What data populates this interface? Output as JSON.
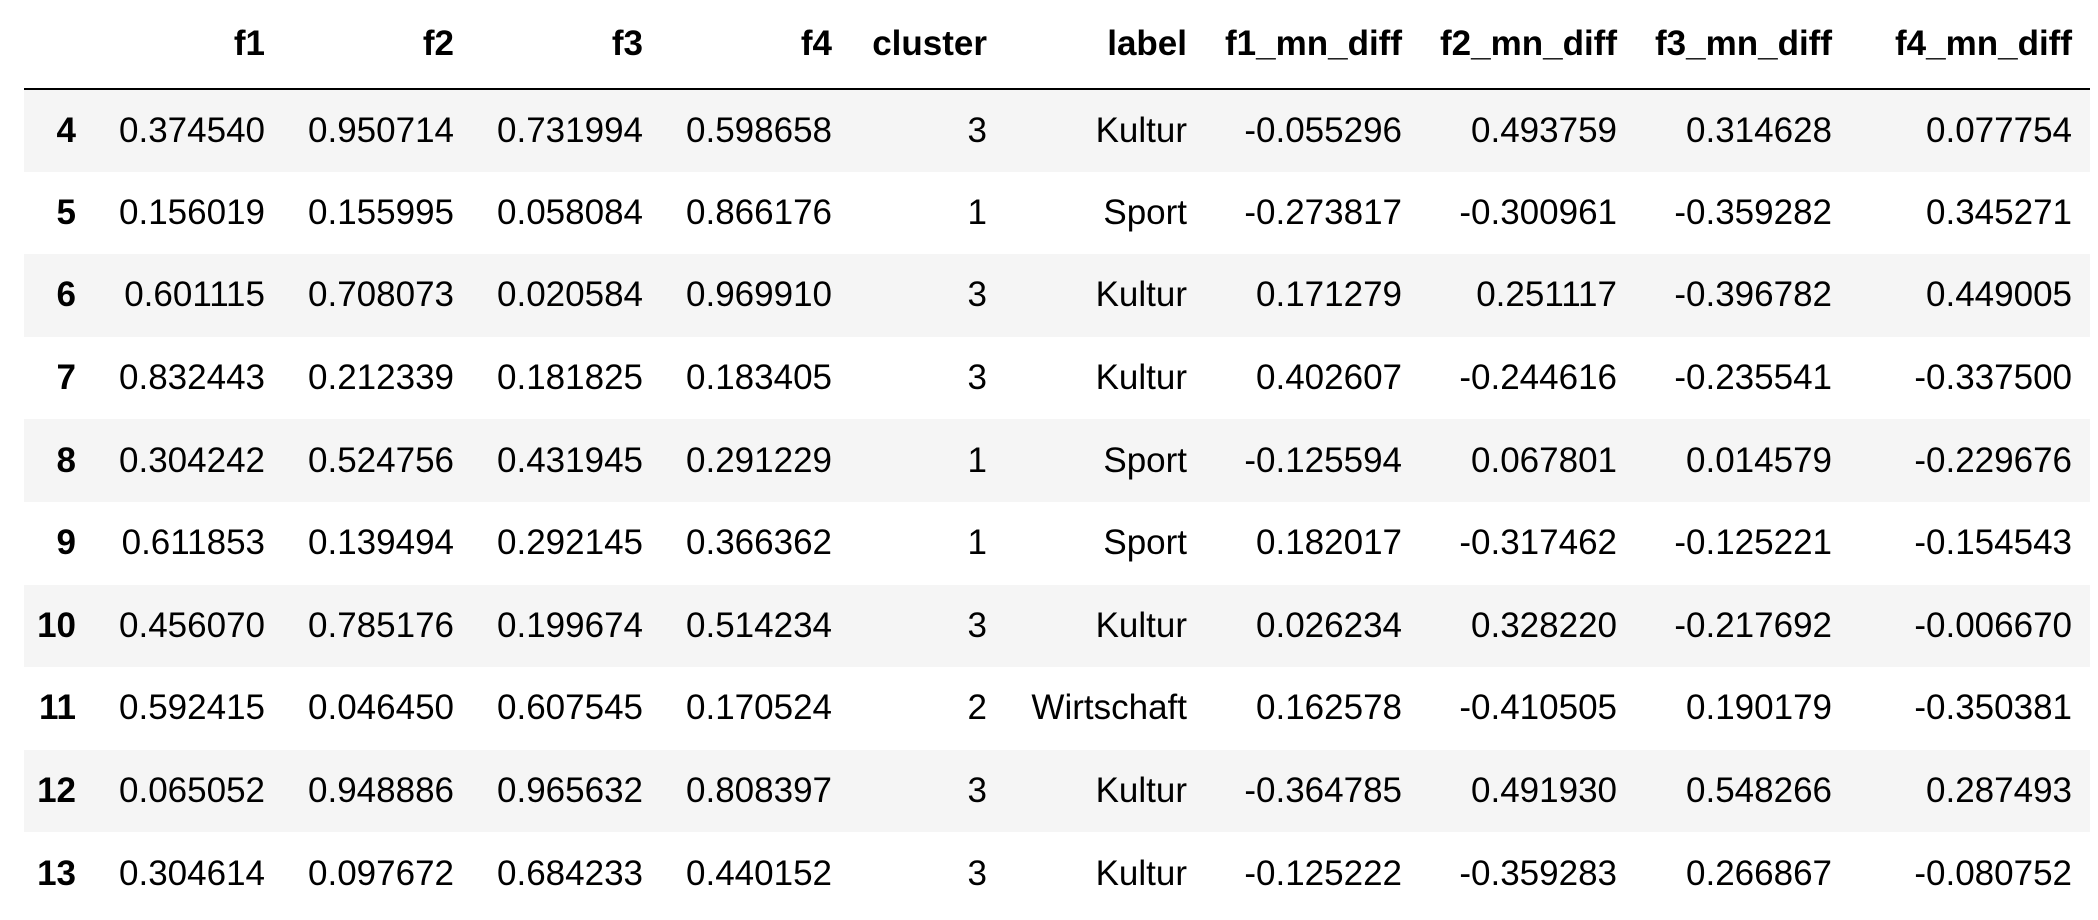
{
  "table": {
    "index_header": "",
    "columns": [
      "f1",
      "f2",
      "f3",
      "f4",
      "cluster",
      "label",
      "f1_mn_diff",
      "f2_mn_diff",
      "f3_mn_diff",
      "f4_mn_diff"
    ],
    "rows": [
      {
        "index": "4",
        "cells": [
          "0.374540",
          "0.950714",
          "0.731994",
          "0.598658",
          "3",
          "Kultur",
          "-0.055296",
          "0.493759",
          "0.314628",
          "0.077754"
        ]
      },
      {
        "index": "5",
        "cells": [
          "0.156019",
          "0.155995",
          "0.058084",
          "0.866176",
          "1",
          "Sport",
          "-0.273817",
          "-0.300961",
          "-0.359282",
          "0.345271"
        ]
      },
      {
        "index": "6",
        "cells": [
          "0.601115",
          "0.708073",
          "0.020584",
          "0.969910",
          "3",
          "Kultur",
          "0.171279",
          "0.251117",
          "-0.396782",
          "0.449005"
        ]
      },
      {
        "index": "7",
        "cells": [
          "0.832443",
          "0.212339",
          "0.181825",
          "0.183405",
          "3",
          "Kultur",
          "0.402607",
          "-0.244616",
          "-0.235541",
          "-0.337500"
        ]
      },
      {
        "index": "8",
        "cells": [
          "0.304242",
          "0.524756",
          "0.431945",
          "0.291229",
          "1",
          "Sport",
          "-0.125594",
          "0.067801",
          "0.014579",
          "-0.229676"
        ]
      },
      {
        "index": "9",
        "cells": [
          "0.611853",
          "0.139494",
          "0.292145",
          "0.366362",
          "1",
          "Sport",
          "0.182017",
          "-0.317462",
          "-0.125221",
          "-0.154543"
        ]
      },
      {
        "index": "10",
        "cells": [
          "0.456070",
          "0.785176",
          "0.199674",
          "0.514234",
          "3",
          "Kultur",
          "0.026234",
          "0.328220",
          "-0.217692",
          "-0.006670"
        ]
      },
      {
        "index": "11",
        "cells": [
          "0.592415",
          "0.046450",
          "0.607545",
          "0.170524",
          "2",
          "Wirtschaft",
          "0.162578",
          "-0.410505",
          "0.190179",
          "-0.350381"
        ]
      },
      {
        "index": "12",
        "cells": [
          "0.065052",
          "0.948886",
          "0.965632",
          "0.808397",
          "3",
          "Kultur",
          "-0.364785",
          "0.491930",
          "0.548266",
          "0.287493"
        ]
      },
      {
        "index": "13",
        "cells": [
          "0.304614",
          "0.097672",
          "0.684233",
          "0.440152",
          "3",
          "Kultur",
          "-0.125222",
          "-0.359283",
          "0.266867",
          "-0.080752"
        ]
      }
    ]
  }
}
